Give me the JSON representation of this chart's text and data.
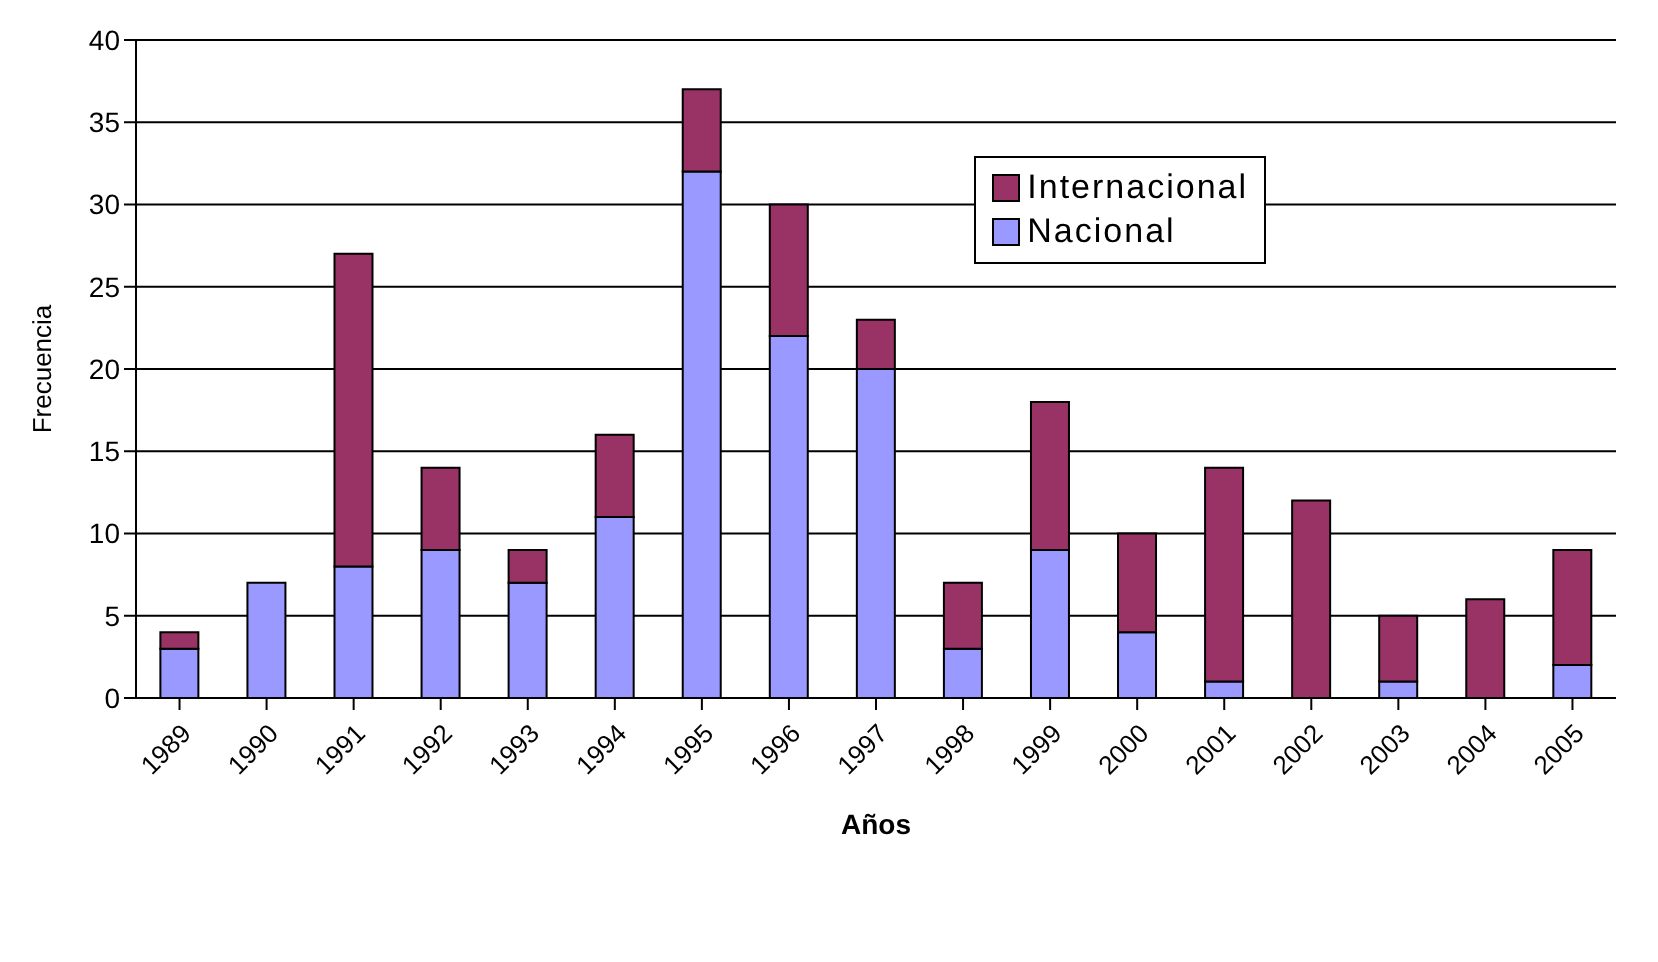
{
  "chart_data": {
    "type": "bar",
    "stacked": true,
    "xlabel": "Años",
    "ylabel": "Frecuencia",
    "categories": [
      "1989",
      "1990",
      "1991",
      "1992",
      "1993",
      "1994",
      "1995",
      "1996",
      "1997",
      "1998",
      "1999",
      "2000",
      "2001",
      "2002",
      "2003",
      "2004",
      "2005"
    ],
    "series": [
      {
        "name": "Nacional",
        "color": "#9999ff",
        "values": [
          3,
          7,
          8,
          9,
          7,
          11,
          32,
          22,
          20,
          3,
          9,
          4,
          1,
          0,
          1,
          0,
          2
        ]
      },
      {
        "name": "Internacional",
        "color": "#993366",
        "values": [
          1,
          0,
          19,
          5,
          2,
          5,
          5,
          8,
          3,
          4,
          9,
          6,
          13,
          12,
          4,
          6,
          7
        ]
      }
    ],
    "ylim": [
      0,
      40
    ],
    "yticks": [
      0,
      5,
      10,
      15,
      20,
      25,
      30,
      35,
      40
    ],
    "grid": "y",
    "legend": "top right"
  }
}
